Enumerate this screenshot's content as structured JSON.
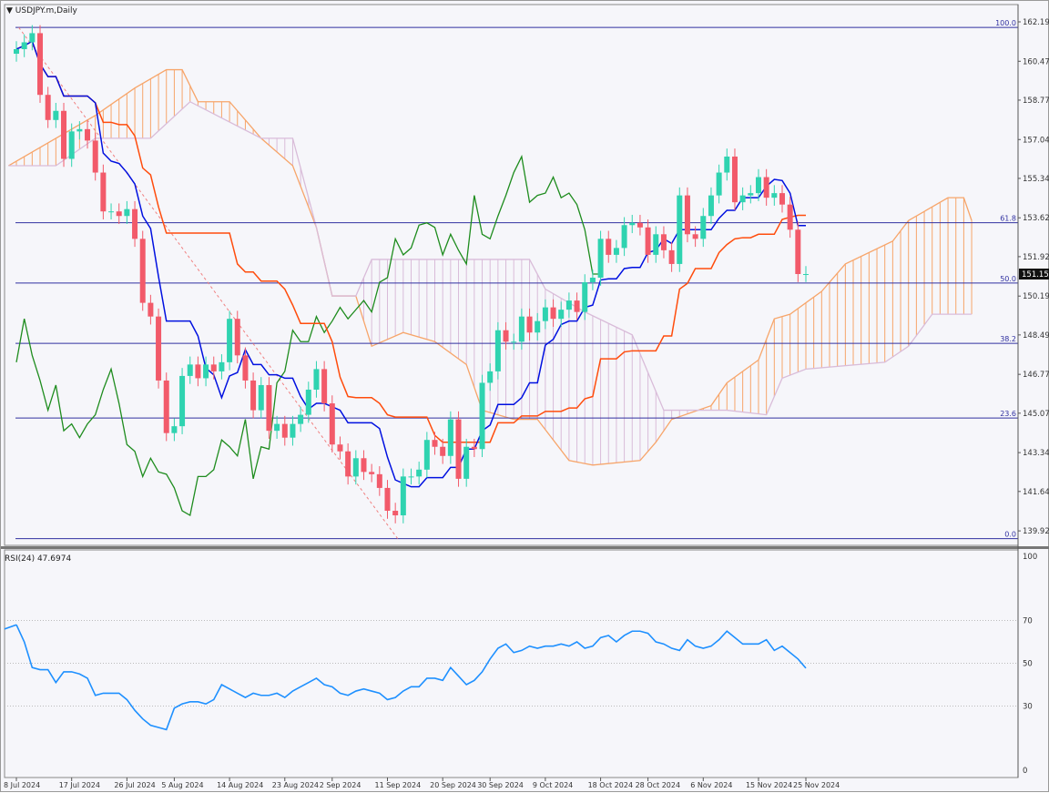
{
  "header": {
    "symbol_title": "USDJPY.m,Daily",
    "menu_icon": "triangle-down-icon"
  },
  "indicator": {
    "label": "RSI(24) 47.6974"
  },
  "current_price": "151.159",
  "colors": {
    "bull": "#2fd3b0",
    "bear": "#f25a6a",
    "tenkan": "#0010e0",
    "kijun": "#ff4c0c",
    "chikou": "#1e8c1e",
    "cloud_up": "#f7a56a",
    "cloud_down": "#d9bcd9",
    "fib": "#3030a0",
    "trend": "#f08080",
    "rsi": "#1e90ff"
  },
  "chart_data": [
    {
      "type": "candlestick",
      "title": "USDJPY.m,Daily",
      "ylim": [
        139.3,
        162.6
      ],
      "y_ticks": [
        "162.195",
        "160.470",
        "158.770",
        "157.045",
        "155.345",
        "153.620",
        "151.920",
        "150.195",
        "148.495",
        "146.770",
        "145.070",
        "143.345",
        "141.645",
        "139.920"
      ],
      "x_ticks": [
        "8 Jul 2024",
        "17 Jul 2024",
        "26 Jul 2024",
        "5 Aug 2024",
        "14 Aug 2024",
        "23 Aug 2024",
        "2 Sep 2024",
        "11 Sep 2024",
        "20 Sep 2024",
        "30 Sep 2024",
        "9 Oct 2024",
        "18 Oct 2024",
        "28 Oct 2024",
        "6 Nov 2024",
        "15 Nov 2024",
        "25 Nov 2024"
      ],
      "first_open": 160.8,
      "close": [
        161.0,
        161.3,
        161.7,
        159.0,
        157.9,
        158.3,
        156.2,
        157.4,
        157.5,
        157.0,
        155.6,
        153.9,
        153.9,
        153.7,
        154.0,
        152.7,
        149.9,
        149.3,
        146.5,
        144.2,
        144.5,
        146.7,
        147.2,
        146.6,
        147.2,
        146.9,
        147.3,
        149.2,
        147.6,
        146.5,
        145.2,
        146.3,
        144.3,
        144.6,
        144.0,
        144.6,
        145.0,
        146.1,
        147.0,
        145.5,
        143.7,
        143.4,
        142.3,
        143.1,
        142.5,
        142.4,
        141.8,
        140.8,
        140.6,
        142.3,
        142.3,
        142.6,
        143.9,
        143.6,
        143.2,
        144.8,
        142.2,
        143.6,
        143.5,
        146.4,
        146.9,
        148.7,
        148.2,
        148.2,
        149.3,
        148.6,
        149.1,
        149.7,
        149.2,
        149.6,
        150.0,
        149.5,
        150.8,
        151.0,
        152.7,
        152.0,
        152.3,
        153.3,
        153.4,
        153.2,
        152.0,
        152.9,
        152.2,
        151.6,
        154.6,
        152.9,
        152.7,
        153.7,
        154.6,
        155.6,
        156.3,
        154.3,
        154.6,
        154.7,
        155.4,
        154.5,
        154.7,
        154.2,
        153.1,
        151.159,
        151.159
      ],
      "fibonacci": {
        "high": 161.95,
        "low": 139.58,
        "levels": [
          {
            "ratio": 100.0,
            "label": "100.0"
          },
          {
            "ratio": 61.8,
            "label": "61.8"
          },
          {
            "ratio": 50.0,
            "label": "50.0"
          },
          {
            "ratio": 38.2,
            "label": "38.2"
          },
          {
            "ratio": 23.6,
            "label": "23.6"
          },
          {
            "ratio": 0.0,
            "label": "0.0"
          }
        ]
      },
      "trendline": {
        "from": [
          161.95
        ],
        "to": [
          139.58
        ]
      },
      "ichimoku": {
        "senkou_a": [
          [
            -1,
            155.9
          ],
          [
            10,
            158.1
          ],
          [
            15,
            159.3
          ],
          [
            19,
            160.1
          ],
          [
            21,
            160.1
          ],
          [
            23,
            158.7
          ],
          [
            27,
            158.7
          ],
          [
            31,
            157.1
          ],
          [
            35,
            155.9
          ],
          [
            38,
            153.2
          ],
          [
            40,
            150.2
          ],
          [
            43,
            150.2
          ],
          [
            45,
            148.0
          ],
          [
            49,
            148.6
          ],
          [
            53,
            148.2
          ],
          [
            57,
            147.2
          ],
          [
            59,
            145.2
          ],
          [
            63,
            144.8
          ],
          [
            66,
            144.8
          ],
          [
            70,
            143.0
          ],
          [
            73,
            142.8
          ],
          [
            79,
            143.0
          ],
          [
            81,
            143.8
          ],
          [
            83,
            144.8
          ],
          [
            88,
            145.4
          ],
          [
            90,
            146.4
          ],
          [
            94,
            147.4
          ],
          [
            96,
            149.2
          ],
          [
            98,
            149.4
          ],
          [
            102,
            150.4
          ],
          [
            105,
            151.6
          ],
          [
            111,
            152.6
          ],
          [
            113,
            153.5
          ],
          [
            116,
            154.1
          ],
          [
            118,
            154.5
          ],
          [
            120,
            154.5
          ],
          [
            121,
            153.5
          ]
        ],
        "senkou_b": [
          [
            -1,
            155.9
          ],
          [
            5,
            155.9
          ],
          [
            10,
            157.1
          ],
          [
            17,
            157.1
          ],
          [
            22,
            158.7
          ],
          [
            31,
            157.1
          ],
          [
            35,
            157.1
          ],
          [
            38,
            153.2
          ],
          [
            40,
            150.2
          ],
          [
            43,
            150.2
          ],
          [
            45,
            151.8
          ],
          [
            65,
            151.8
          ],
          [
            67,
            150.5
          ],
          [
            72,
            149.5
          ],
          [
            78,
            148.5
          ],
          [
            82,
            145.2
          ],
          [
            90,
            145.2
          ],
          [
            95,
            145.0
          ],
          [
            97,
            146.6
          ],
          [
            100,
            147.0
          ],
          [
            110,
            147.3
          ],
          [
            113,
            148.0
          ],
          [
            116,
            149.4
          ],
          [
            121,
            149.4
          ]
        ]
      }
    },
    {
      "type": "line",
      "name": "RSI(24)",
      "ylim": [
        0,
        100
      ],
      "y_ticks": [
        "100",
        "70",
        "50",
        "30",
        "0"
      ],
      "levels": [
        70,
        50,
        30
      ],
      "values": [
        68,
        60,
        48,
        47,
        47,
        41,
        46,
        46,
        45,
        43,
        35,
        36,
        36,
        36,
        33,
        28,
        24,
        21,
        20,
        19,
        29,
        31,
        32,
        32,
        31,
        33,
        40,
        38,
        36,
        34,
        36,
        35,
        35,
        36,
        34,
        37,
        39,
        41,
        43,
        40,
        39,
        36,
        35,
        37,
        38,
        37,
        36,
        33,
        34,
        37,
        39,
        39,
        43,
        43,
        42,
        48,
        44,
        40,
        42,
        46,
        52,
        57,
        59,
        55,
        56,
        58,
        57,
        58,
        58,
        59,
        58,
        60,
        57,
        58,
        62,
        63,
        60,
        63,
        65,
        65,
        64,
        60,
        59,
        57,
        56,
        61,
        58,
        57,
        58,
        61,
        65,
        62,
        59,
        59,
        59,
        61,
        56,
        58,
        55,
        52,
        47.7
      ]
    }
  ]
}
